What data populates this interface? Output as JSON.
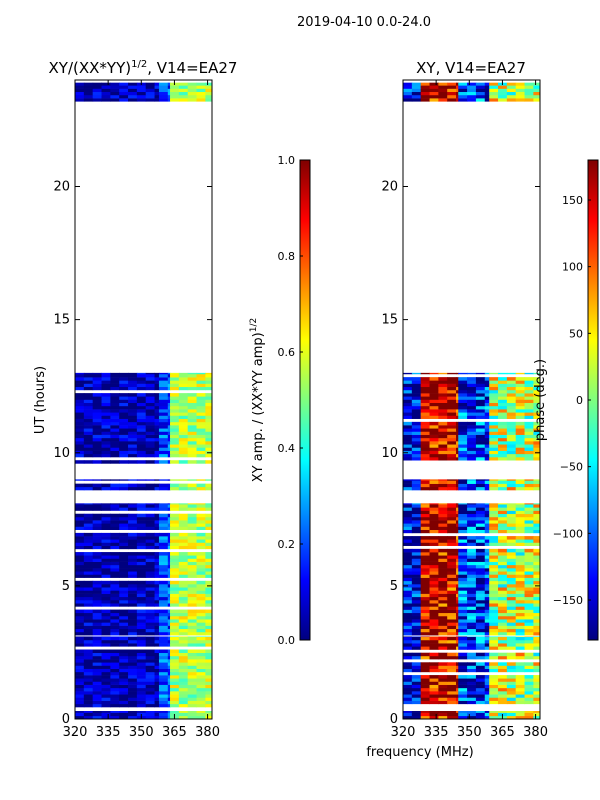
{
  "suptitle": "2019-04-10 0.0-24.0",
  "xlabel_shared": "frequency (MHz)",
  "colors": {
    "jet": [
      "#00007f",
      "#0000ff",
      "#007fff",
      "#00ffff",
      "#7fff7f",
      "#ffff00",
      "#ff7f00",
      "#ff0000",
      "#7f0000"
    ]
  },
  "chart_data": [
    {
      "type": "heatmap",
      "title_main": "XY/(XX*YY)",
      "title_sup": "1/2",
      "title_tail": ", V14=EA27",
      "xlabel": "",
      "ylabel": "UT (hours)",
      "xlim": [
        320,
        382
      ],
      "ylim": [
        0,
        24
      ],
      "xticks": [
        320,
        335,
        350,
        365,
        380
      ],
      "yticks": [
        0,
        5,
        10,
        15,
        20
      ],
      "colorbar": {
        "label_main": "XY amp. / (XX*YY amp)",
        "label_sup": "1/2",
        "range": [
          0.0,
          1.0
        ],
        "ticks": [
          "0.0",
          "0.2",
          "0.4",
          "0.6",
          "0.8",
          "1.0"
        ],
        "tick_values": [
          0.0,
          0.2,
          0.4,
          0.6,
          0.8,
          1.0
        ]
      },
      "data_time_ranges_hours": [
        [
          0.0,
          0.3
        ],
        [
          0.45,
          3.1
        ],
        [
          3.15,
          8.1
        ],
        [
          8.6,
          9.0
        ],
        [
          9.6,
          13.0
        ],
        [
          23.2,
          23.9
        ]
      ],
      "blank_time_ranges_hours": [
        [
          13.0,
          23.2
        ]
      ],
      "band_levels_by_freq": [
        {
          "freq": [
            320,
            358
          ],
          "level": 0.05
        },
        {
          "freq": [
            358,
            363
          ],
          "level": 0.2
        },
        {
          "freq": [
            363,
            382
          ],
          "level": 0.55
        }
      ]
    },
    {
      "type": "heatmap",
      "title_main": "XY, V14=EA27",
      "title_sup": "",
      "title_tail": "",
      "xlabel": "frequency (MHz)",
      "ylabel": "",
      "xlim": [
        320,
        382
      ],
      "ylim": [
        0,
        24
      ],
      "xticks": [
        320,
        335,
        350,
        365,
        380
      ],
      "yticks": [
        0,
        5,
        10,
        15,
        20
      ],
      "colorbar": {
        "label_main": "phase (deg.)",
        "label_sup": "",
        "range": [
          -180,
          180
        ],
        "ticks": [
          "−150",
          "−100",
          "−50",
          "0",
          "50",
          "100",
          "150"
        ],
        "tick_values": [
          -150,
          -100,
          -50,
          0,
          50,
          100,
          150
        ]
      },
      "data_time_ranges_hours": [
        [
          0.0,
          0.3
        ],
        [
          0.45,
          3.1
        ],
        [
          3.15,
          8.1
        ],
        [
          8.6,
          9.0
        ],
        [
          9.6,
          13.0
        ],
        [
          23.2,
          23.9
        ]
      ],
      "blank_time_ranges_hours": [
        [
          13.0,
          23.2
        ]
      ],
      "band_levels_by_freq": [
        {
          "freq": [
            320,
            328
          ],
          "level": -150
        },
        {
          "freq": [
            328,
            345
          ],
          "level": 150
        },
        {
          "freq": [
            345,
            359
          ],
          "level": -120
        },
        {
          "freq": [
            359,
            382
          ],
          "level": 20
        }
      ]
    }
  ]
}
